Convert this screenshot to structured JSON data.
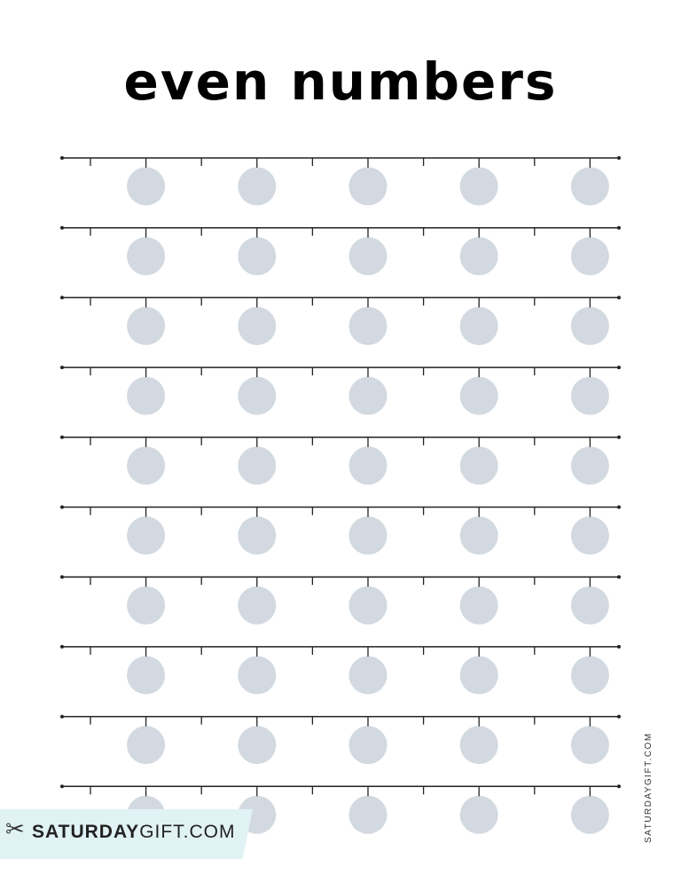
{
  "title": "even numbers",
  "worksheet": {
    "rows": 10,
    "ticks_per_row": 10,
    "answer_circle_positions": "every second tick",
    "line_color": "#222222",
    "circle_color": "#d2d9e0"
  },
  "branding": {
    "banner_bold": "SATURDAY",
    "banner_light": "GIFT.COM",
    "side_text": "SATURDAYGIFT.COM",
    "banner_color": "#e1f2f4",
    "icon": "scissors-ribbon-icon"
  }
}
